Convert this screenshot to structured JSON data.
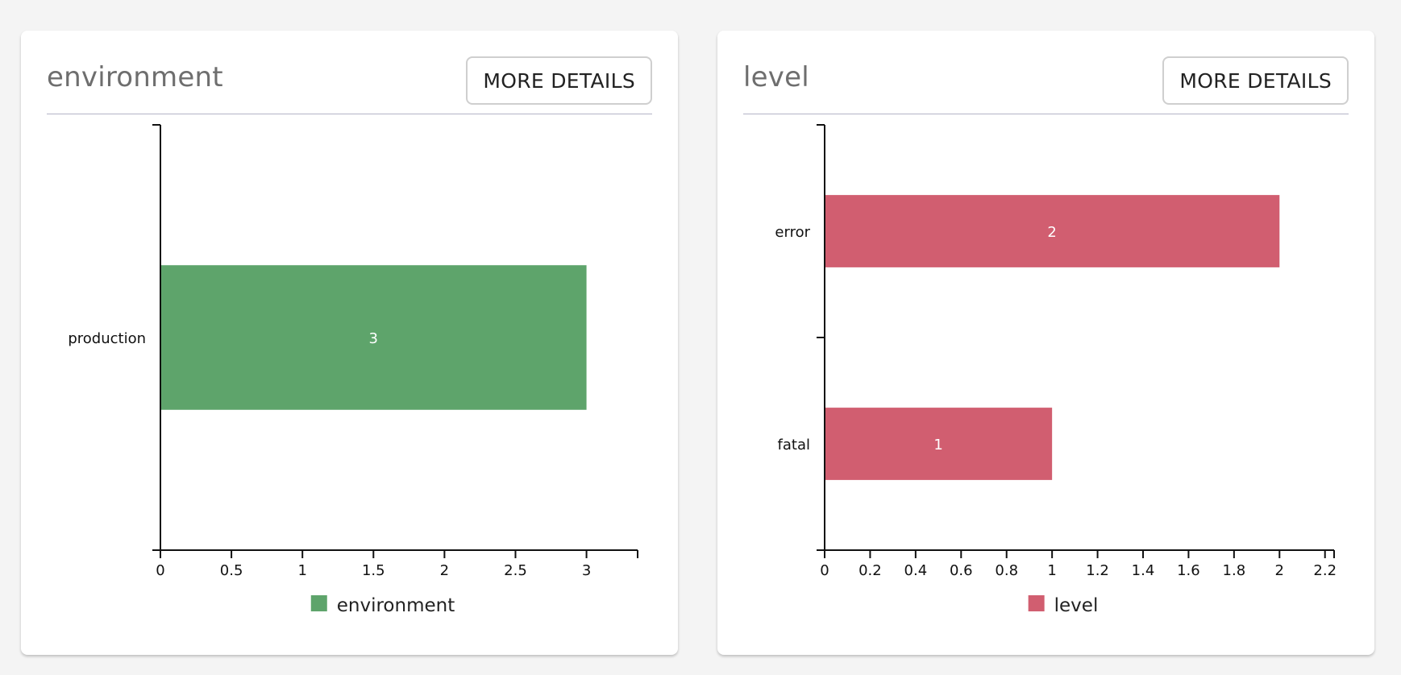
{
  "cards": [
    {
      "title": "environment",
      "details_label": "MORE DETAILS"
    },
    {
      "title": "level",
      "details_label": "MORE DETAILS"
    }
  ],
  "chart_data": [
    {
      "type": "bar",
      "orientation": "horizontal",
      "categories": [
        "production"
      ],
      "series": [
        {
          "name": "environment",
          "values": [
            3
          ],
          "color": "#5ea46b"
        }
      ],
      "xlim": [
        0,
        3.36
      ],
      "xticks": [
        0,
        0.5,
        1,
        1.5,
        2,
        2.5,
        3
      ],
      "xtick_labels": [
        "0",
        "0.5",
        "1",
        "1.5",
        "2",
        "2.5",
        "3"
      ],
      "data_labels": [
        "3"
      ],
      "legend_position": "bottom-center",
      "grid": false
    },
    {
      "type": "bar",
      "orientation": "horizontal",
      "categories": [
        "error",
        "fatal"
      ],
      "series": [
        {
          "name": "level",
          "values": [
            2,
            1
          ],
          "color": "#d15e70"
        }
      ],
      "xlim": [
        0,
        2.24
      ],
      "xticks": [
        0,
        0.2,
        0.4,
        0.6,
        0.8,
        1,
        1.2,
        1.4,
        1.6,
        1.8,
        2,
        2.2
      ],
      "xtick_labels": [
        "0",
        "0.2",
        "0.4",
        "0.6",
        "0.8",
        "1",
        "1.2",
        "1.4",
        "1.6",
        "1.8",
        "2",
        "2.2"
      ],
      "data_labels": [
        "2",
        "1"
      ],
      "legend_position": "bottom-center",
      "grid": false
    }
  ]
}
